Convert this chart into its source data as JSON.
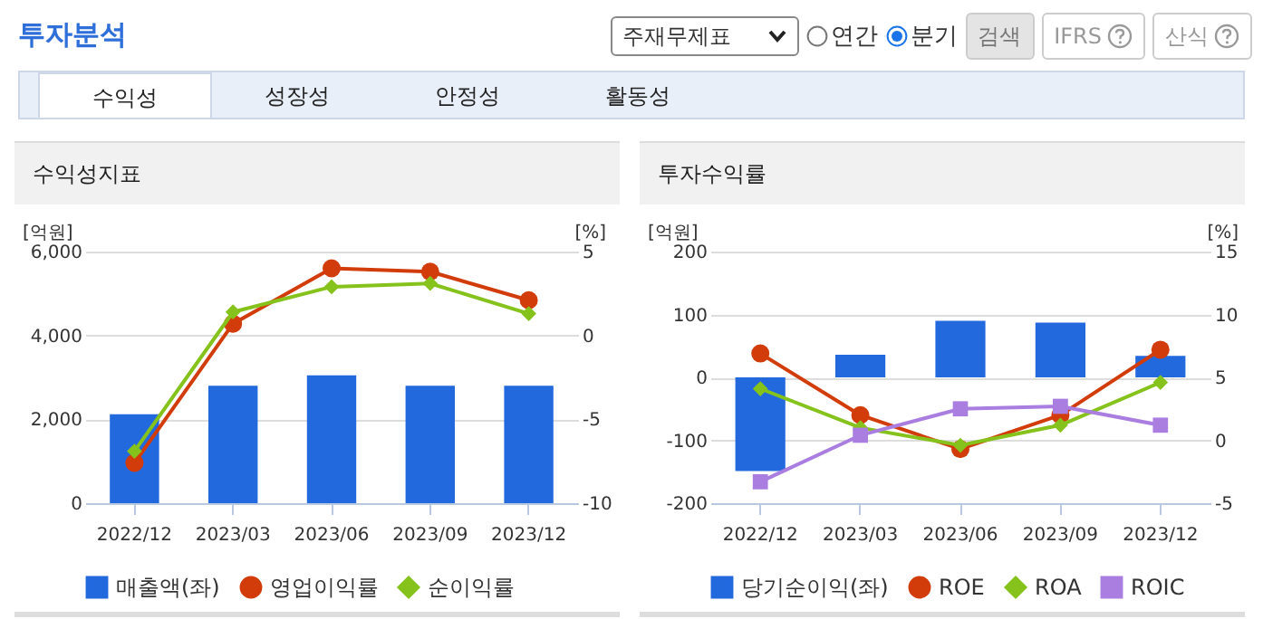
{
  "chart_data": [
    {
      "type": "other",
      "title": "투자분석",
      "annotations": [
        "주재무제표",
        "연간",
        "분기",
        "검색",
        "IFRS",
        "산식",
        "수익성",
        "성장성",
        "안정성",
        "활동성"
      ]
    },
    {
      "type": "bar",
      "title": "수익성지표",
      "categories": [
        "2022/12",
        "2023/03",
        "2023/06",
        "2023/09",
        "2023/12"
      ],
      "ylabel": "[억원]",
      "y2label": "[%]",
      "ylim": [
        0,
        6000
      ],
      "yticks": [
        0,
        {
          "value": 2000,
          "label": "2,000"
        },
        {
          "value": 4000,
          "label": "4,000"
        },
        {
          "value": 6000,
          "label": "6,000"
        }
      ],
      "y2lim": [
        -10,
        5
      ],
      "y2ticks": [
        -10,
        -5,
        0,
        5
      ],
      "grid": "y",
      "legend": "bottom",
      "series": [
        {
          "name": "매출액(좌)",
          "color": "#2369de",
          "values": [
            2120,
            2800,
            3050,
            2800,
            2800
          ]
        },
        {
          "name": "영업이익률",
          "type": "line",
          "axis": "y2",
          "marker": "circle",
          "color": "#d23c0a",
          "values": [
            -7.6,
            0.7,
            4.0,
            3.8,
            2.1
          ]
        },
        {
          "name": "순이익률",
          "type": "line",
          "axis": "y2",
          "marker": "diamond",
          "color": "#86c21c",
          "values": [
            -6.9,
            1.4,
            2.9,
            3.1,
            1.3
          ]
        }
      ]
    },
    {
      "type": "bar",
      "title": "투자수익률",
      "categories": [
        "2022/12",
        "2023/03",
        "2023/06",
        "2023/09",
        "2023/12"
      ],
      "ylabel": "[억원]",
      "y2label": "[%]",
      "ylim": [
        -200,
        200
      ],
      "yticks": [
        -200,
        -100,
        0,
        100,
        200
      ],
      "y2lim": [
        -5,
        15
      ],
      "y2ticks": [
        -5,
        0,
        5,
        10,
        15
      ],
      "grid": "y",
      "legend": "bottom",
      "series": [
        {
          "name": "당기순이익(좌)",
          "color": "#2369de",
          "values": [
            -149,
            36,
            90,
            87,
            34
          ]
        },
        {
          "name": "ROE",
          "type": "line",
          "axis": "y2",
          "marker": "circle",
          "color": "#d23c0a",
          "values": [
            6.9,
            2.0,
            -0.7,
            2.0,
            7.2
          ]
        },
        {
          "name": "ROA",
          "type": "line",
          "axis": "y2",
          "marker": "diamond",
          "color": "#86c21c",
          "values": [
            4.1,
            1.0,
            -0.4,
            1.2,
            4.6
          ]
        },
        {
          "name": "ROIC",
          "type": "line",
          "axis": "y2",
          "marker": "square",
          "color": "#a97ee0",
          "values": [
            -3.3,
            0.4,
            2.5,
            2.7,
            1.2
          ]
        }
      ]
    }
  ]
}
